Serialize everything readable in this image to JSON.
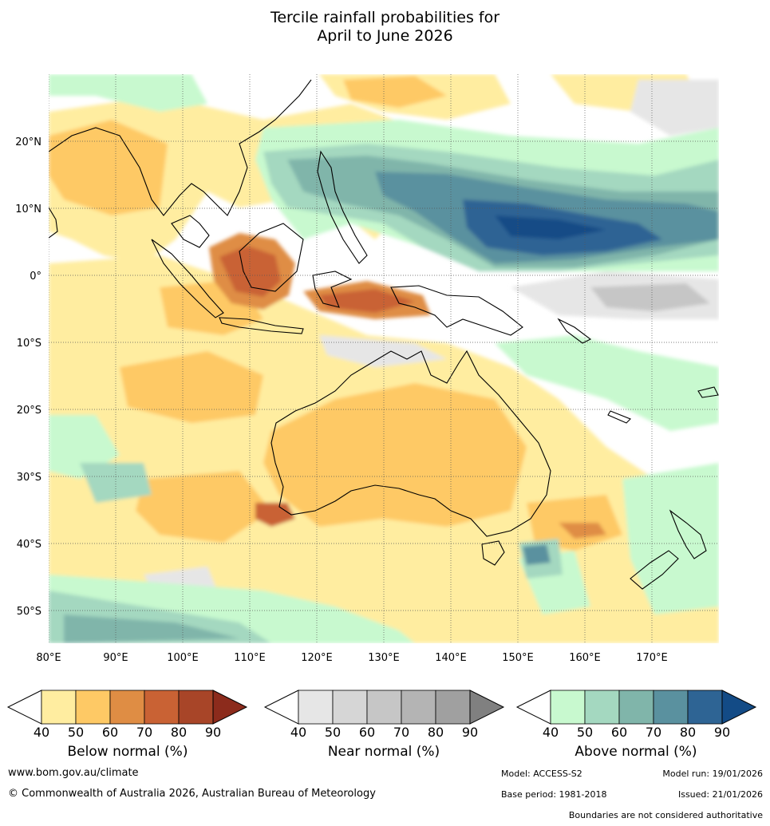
{
  "title": {
    "line1": "Tercile rainfall probabilities for",
    "line2": "April to June 2026"
  },
  "map": {
    "lat_labels": [
      "20°N",
      "10°N",
      "0°",
      "10°S",
      "20°S",
      "30°S",
      "40°S",
      "50°S"
    ],
    "lon_labels": [
      "80°E",
      "90°E",
      "100°E",
      "110°E",
      "120°E",
      "130°E",
      "140°E",
      "150°E",
      "160°E",
      "170°E"
    ]
  },
  "colorbars": [
    {
      "name": "below",
      "label": "Below normal (%)",
      "ticks": [
        "40",
        "50",
        "60",
        "70",
        "80",
        "90"
      ],
      "colors": [
        "#ffffff",
        "#ffeda0",
        "#fec965",
        "#df8d44",
        "#c96234",
        "#a84528",
        "#8c2b1c"
      ]
    },
    {
      "name": "near",
      "label": "Near normal (%)",
      "ticks": [
        "40",
        "50",
        "60",
        "70",
        "80",
        "90"
      ],
      "colors": [
        "#ffffff",
        "#e6e6e6",
        "#d6d6d6",
        "#c6c6c6",
        "#b4b4b4",
        "#a0a0a0",
        "#808080"
      ]
    },
    {
      "name": "above",
      "label": "Above normal (%)",
      "ticks": [
        "40",
        "50",
        "60",
        "70",
        "80",
        "90"
      ],
      "colors": [
        "#ffffff",
        "#c8f9cf",
        "#a4d8c0",
        "#80b5aa",
        "#5a919f",
        "#2e6494",
        "#134b86"
      ]
    }
  ],
  "footer": {
    "website": "www.bom.gov.au/climate",
    "copyright": "© Commonwealth of Australia 2026, Australian Bureau of Meteorology",
    "model": "Model: ACCESS-S2",
    "model_run": "Model run: 19/01/2026",
    "base_period": "Base period: 1981-2018",
    "issued": "Issued: 21/01/2026",
    "disclaimer": "Boundaries are not considered authoritative"
  }
}
